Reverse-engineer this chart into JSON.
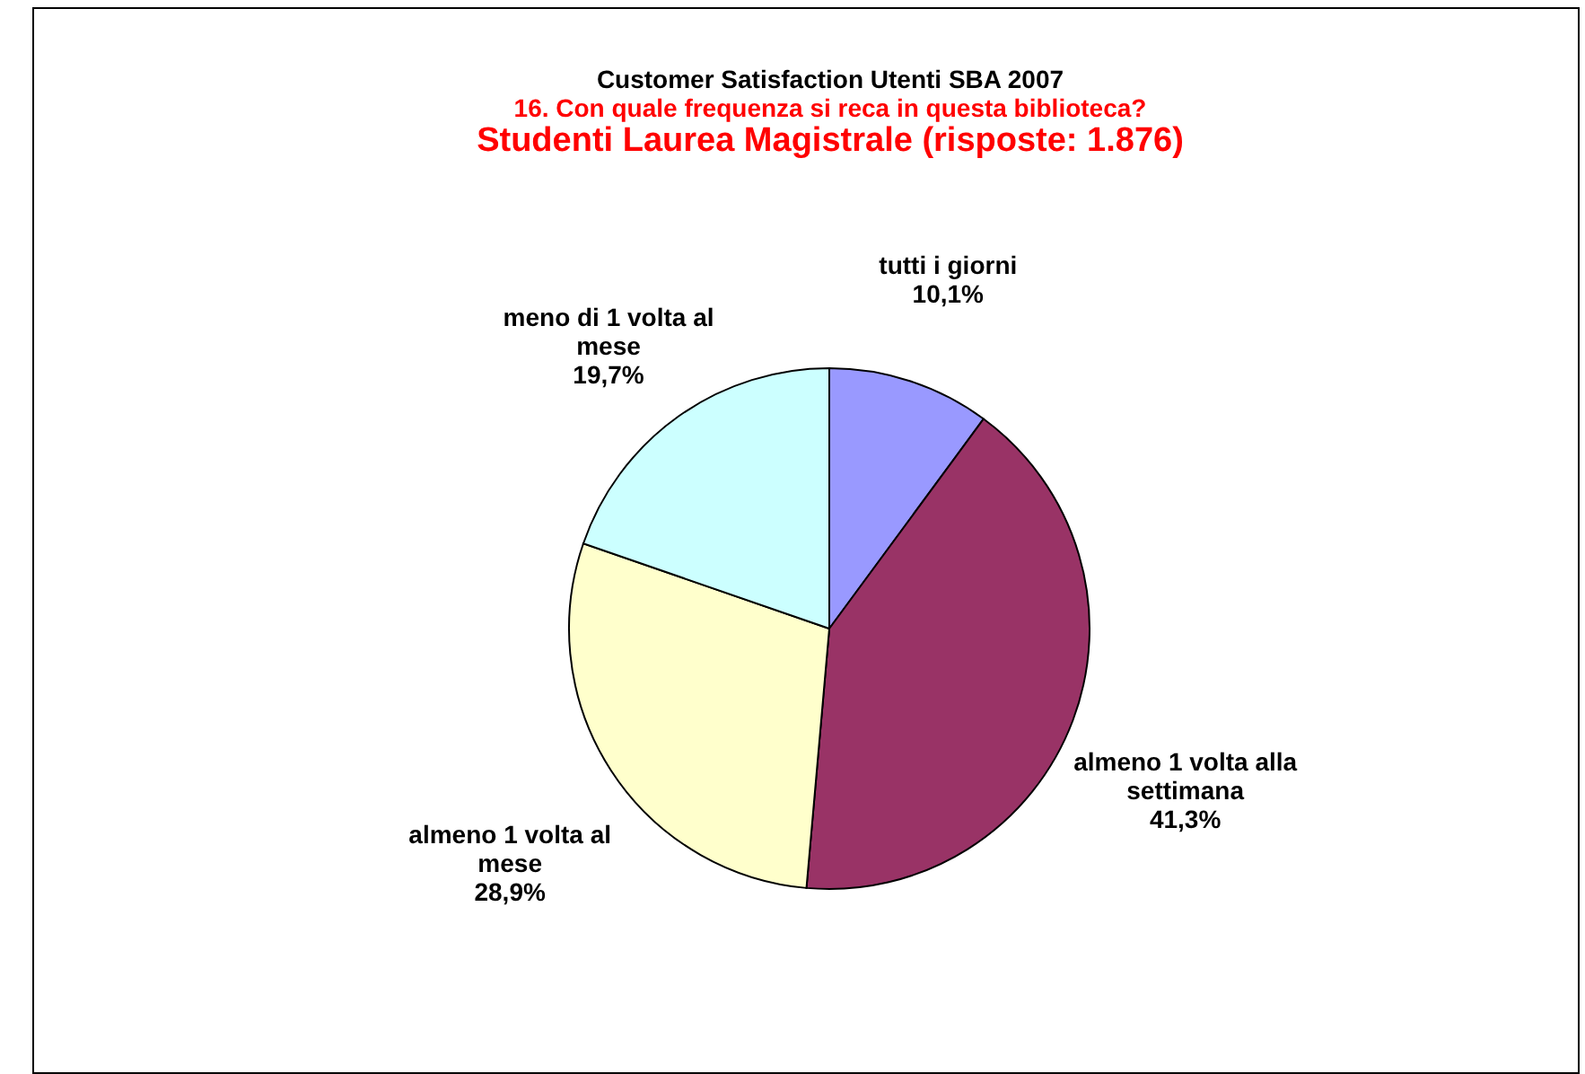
{
  "chart_data": {
    "type": "pie",
    "title": "Customer Satisfaction Utenti SBA 2007",
    "subtitle": [
      "16. Con quale frequenza si reca in questa biblioteca?",
      "Studenti Laurea Magistrale (risposte: 1.876)"
    ],
    "categories": [
      "tutti i giorni",
      "almeno 1 volta alla settimana",
      "almeno 1 volta al mese",
      "meno di 1 volta al mese"
    ],
    "values": [
      10.1,
      41.3,
      28.9,
      19.7
    ],
    "value_labels": [
      "10,1%",
      "41,3%",
      "28,9%",
      "19,7%"
    ],
    "colors": [
      "#9999ff",
      "#993366",
      "#ffffcc",
      "#ccffff"
    ]
  }
}
